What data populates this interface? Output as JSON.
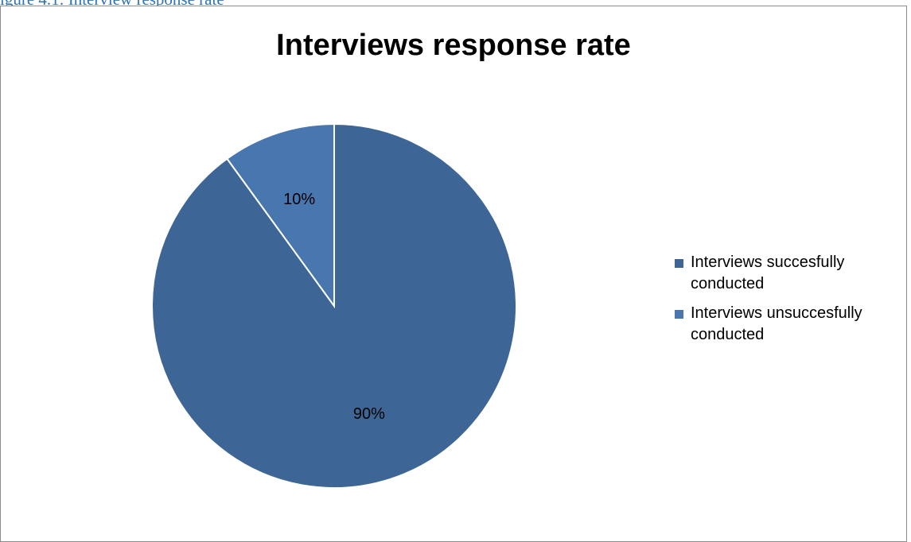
{
  "caption_fragment": "igure 4.1: Interview response rate",
  "chart_data": {
    "type": "pie",
    "title": "Interviews response rate",
    "categories": [
      "Interviews succesfully conducted",
      "Interviews unsuccesfully conducted"
    ],
    "values": [
      90,
      10
    ],
    "labels": [
      "90%",
      "10%"
    ],
    "colors": [
      "#3d6595",
      "#4877b0"
    ],
    "legend_position": "right"
  }
}
